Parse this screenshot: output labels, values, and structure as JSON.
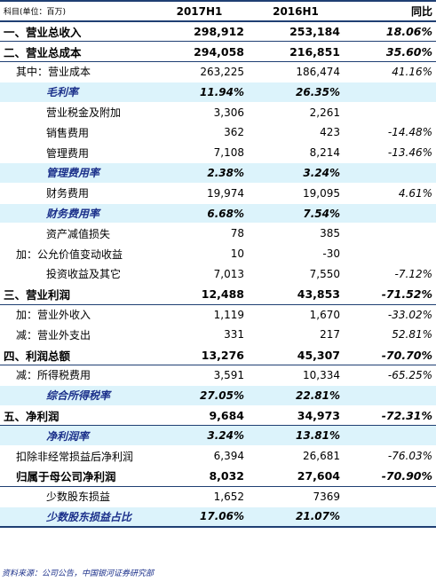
{
  "header": {
    "label": "科目(单位：百万)",
    "col1": "2017H1",
    "col2": "2016H1",
    "col3": "同比"
  },
  "rows": [
    {
      "label": "一、营业总收入",
      "v2017": "298,912",
      "v2016": "253,184",
      "yoy": "18.06%",
      "type": "sec",
      "indent": 0
    },
    {
      "label": "二、营业总成本",
      "v2017": "294,058",
      "v2016": "216,851",
      "yoy": "35.60%",
      "type": "sec",
      "indent": 0
    },
    {
      "label": "其中：营业成本",
      "v2017": "263,225",
      "v2016": "186,474",
      "yoy": "41.16%",
      "type": "normal",
      "indent": 1
    },
    {
      "label": "毛利率",
      "v2017": "11.94%",
      "v2016": "26.35%",
      "yoy": "",
      "type": "ratio",
      "indent": 2
    },
    {
      "label": "营业税金及附加",
      "v2017": "3,306",
      "v2016": "2,261",
      "yoy": "",
      "type": "normal",
      "indent": 2
    },
    {
      "label": "销售费用",
      "v2017": "362",
      "v2016": "423",
      "yoy": "-14.48%",
      "type": "normal",
      "indent": 2
    },
    {
      "label": "管理费用",
      "v2017": "7,108",
      "v2016": "8,214",
      "yoy": "-13.46%",
      "type": "normal",
      "indent": 2
    },
    {
      "label": "管理费用率",
      "v2017": "2.38%",
      "v2016": "3.24%",
      "yoy": "",
      "type": "ratio",
      "indent": 2
    },
    {
      "label": "财务费用",
      "v2017": "19,974",
      "v2016": "19,095",
      "yoy": "4.61%",
      "type": "normal",
      "indent": 2
    },
    {
      "label": "财务费用率",
      "v2017": "6.68%",
      "v2016": "7.54%",
      "yoy": "",
      "type": "ratio",
      "indent": 2
    },
    {
      "label": "资产减值损失",
      "v2017": "78",
      "v2016": "385",
      "yoy": "",
      "type": "normal",
      "indent": 2
    },
    {
      "label": "加：公允价值变动收益",
      "v2017": "10",
      "v2016": "-30",
      "yoy": "",
      "type": "normal",
      "indent": 1
    },
    {
      "label": "投资收益及其它",
      "v2017": "7,013",
      "v2016": "7,550",
      "yoy": "-7.12%",
      "type": "normal",
      "indent": 2
    },
    {
      "label": "三、营业利润",
      "v2017": "12,488",
      "v2016": "43,853",
      "yoy": "-71.52%",
      "type": "sec",
      "indent": 0
    },
    {
      "label": "加：营业外收入",
      "v2017": "1,119",
      "v2016": "1,670",
      "yoy": "-33.02%",
      "type": "normal",
      "indent": 1
    },
    {
      "label": "减：营业外支出",
      "v2017": "331",
      "v2016": "217",
      "yoy": "52.81%",
      "type": "normal",
      "indent": 1
    },
    {
      "label": "四、利润总额",
      "v2017": "13,276",
      "v2016": "45,307",
      "yoy": "-70.70%",
      "type": "sec",
      "indent": 0
    },
    {
      "label": "减：所得税费用",
      "v2017": "3,591",
      "v2016": "10,334",
      "yoy": "-65.25%",
      "type": "normal",
      "indent": 1
    },
    {
      "label": "综合所得税率",
      "v2017": "27.05%",
      "v2016": "22.81%",
      "yoy": "",
      "type": "ratio",
      "indent": 2
    },
    {
      "label": "五、净利润",
      "v2017": "9,684",
      "v2016": "34,973",
      "yoy": "-72.31%",
      "type": "sec",
      "indent": 0
    },
    {
      "label": "净利润率",
      "v2017": "3.24%",
      "v2016": "13.81%",
      "yoy": "",
      "type": "ratio",
      "indent": 2
    },
    {
      "label": "扣除非经常损益后净利润",
      "v2017": "6,394",
      "v2016": "26,681",
      "yoy": "-76.03%",
      "type": "normal",
      "indent": 1
    },
    {
      "label": "归属于母公司净利润",
      "v2017": "8,032",
      "v2016": "27,604",
      "yoy": "-70.90%",
      "type": "sec",
      "indent": 1
    },
    {
      "label": "少数股东损益",
      "v2017": "1,652",
      "v2016": "7369",
      "yoy": "",
      "type": "normal",
      "indent": 2
    },
    {
      "label": "少数股东损益占比",
      "v2017": "17.06%",
      "v2016": "21.07%",
      "yoy": "",
      "type": "ratio last",
      "indent": 2
    }
  ],
  "source": "资料来源：公司公告，中国银河证券研究部"
}
